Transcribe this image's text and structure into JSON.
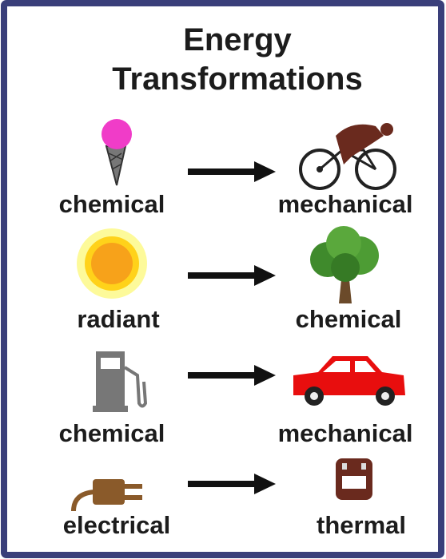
{
  "title_lines": [
    "Energy",
    "Transformations"
  ],
  "rows": [
    {
      "from": "chemical",
      "to": "mechanical"
    },
    {
      "from": "radiant",
      "to": "chemical"
    },
    {
      "from": "chemical",
      "to": "mechanical"
    },
    {
      "from": "electrical",
      "to": "thermal"
    }
  ]
}
